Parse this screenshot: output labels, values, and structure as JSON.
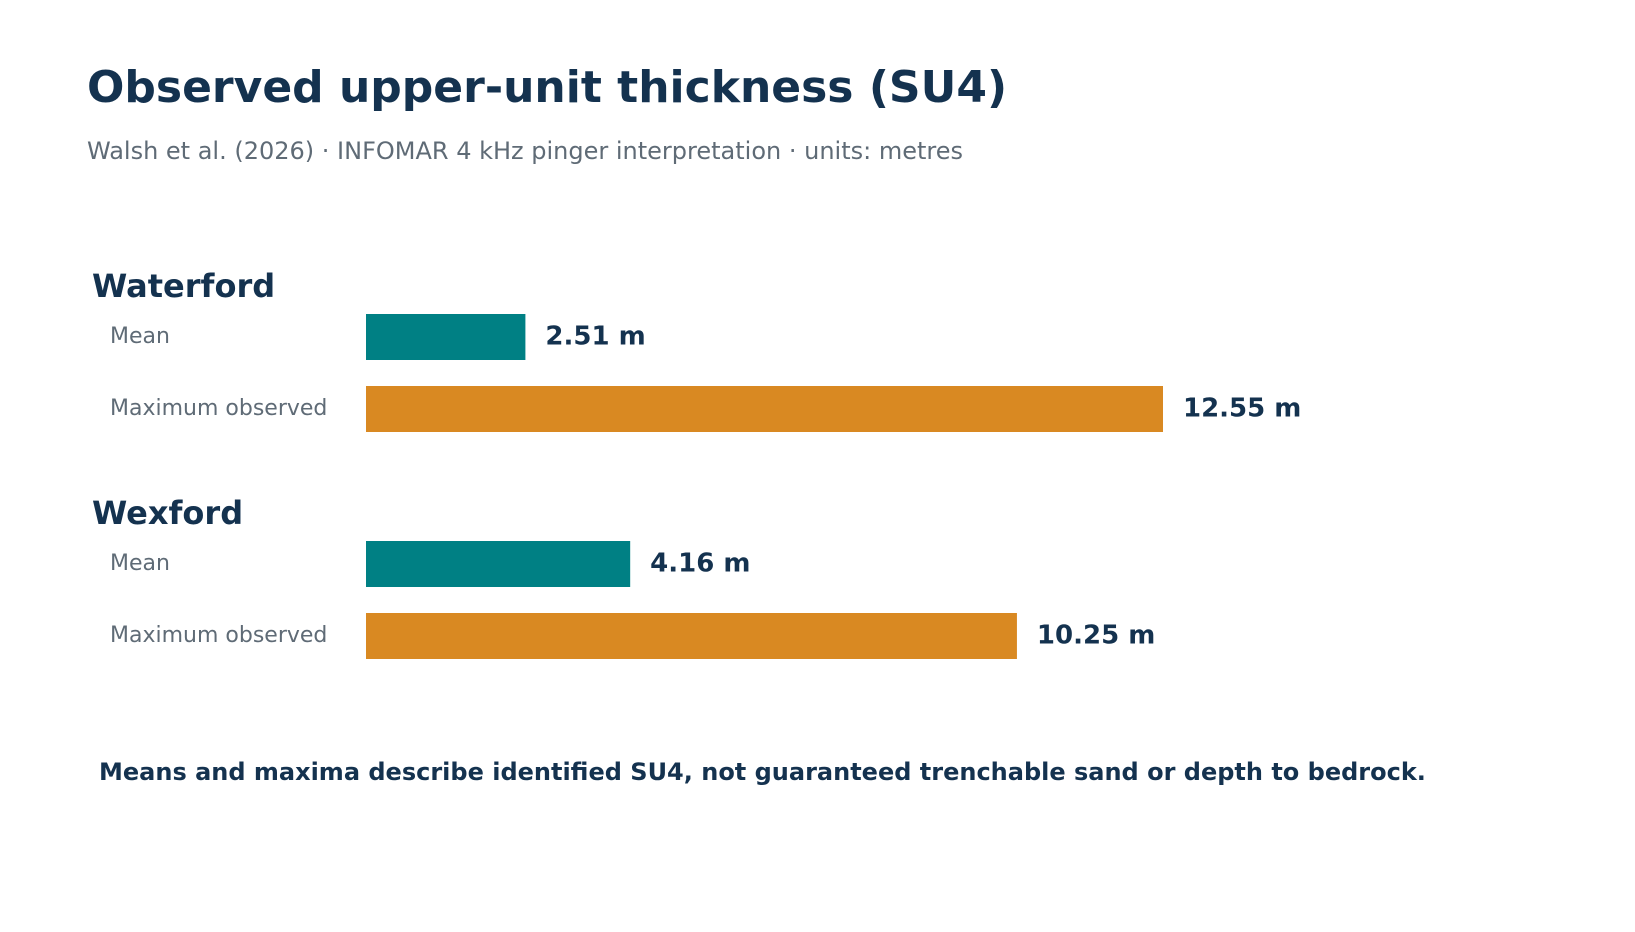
{
  "chart_data": {
    "type": "bar",
    "title": "Observed upper-unit thickness (SU4)",
    "subtitle": "Walsh et al. (2026) · INFOMAR 4 kHz pinger interpretation · units: metres",
    "categories": [
      "Waterford",
      "Wexford"
    ],
    "series": [
      {
        "name": "Mean",
        "color": "#008084",
        "values": [
          2.51,
          4.16
        ],
        "value_labels": [
          "2.51 m",
          "4.16 m"
        ]
      },
      {
        "name": "Maximum observed",
        "color": "#d98922",
        "values": [
          12.55,
          10.25
        ],
        "value_labels": [
          "12.55 m",
          "10.25 m"
        ]
      }
    ],
    "note": "Means and maxima describe identified SU4, not guaranteed trenchable sand or depth to bedrock."
  }
}
